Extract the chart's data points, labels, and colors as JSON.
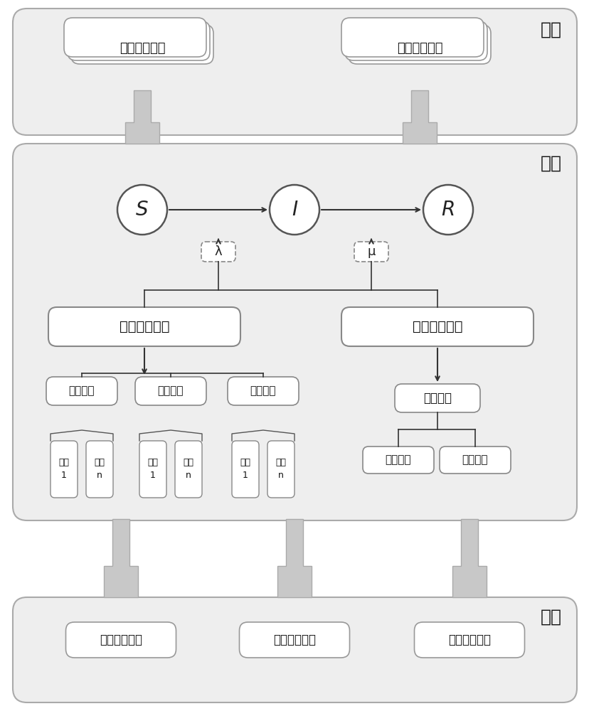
{
  "bg_color": "#f0f0f0",
  "white": "#ffffff",
  "gray_box": "#e8e8e8",
  "dark": "#222222",
  "arrow_gray": "#b0b0b0",
  "section_labels": {
    "output": "输出",
    "model": "模型",
    "input": "输入"
  },
  "output_boxes": [
    "群体状态演变",
    "信息传播趋势"
  ],
  "sir_nodes": [
    "S",
    "I",
    "R"
  ],
  "lambda_label": "λ",
  "mu_label": "μ",
  "static_box": "用户静态属性",
  "chaotic_box": "混沌动态行为",
  "user_attr": "用户属性",
  "content_attr": "内容属性",
  "relation_attr": "关系属性",
  "weighted_order": "加权一阶",
  "embed_dim": "嵌入维数",
  "time_delay": "时间延迟",
  "attr_1": "属性\n1",
  "attr_n": "属性\nn",
  "input_boxes": [
    "用户关系网络",
    "群体行为网络",
    "话题传播网络"
  ]
}
